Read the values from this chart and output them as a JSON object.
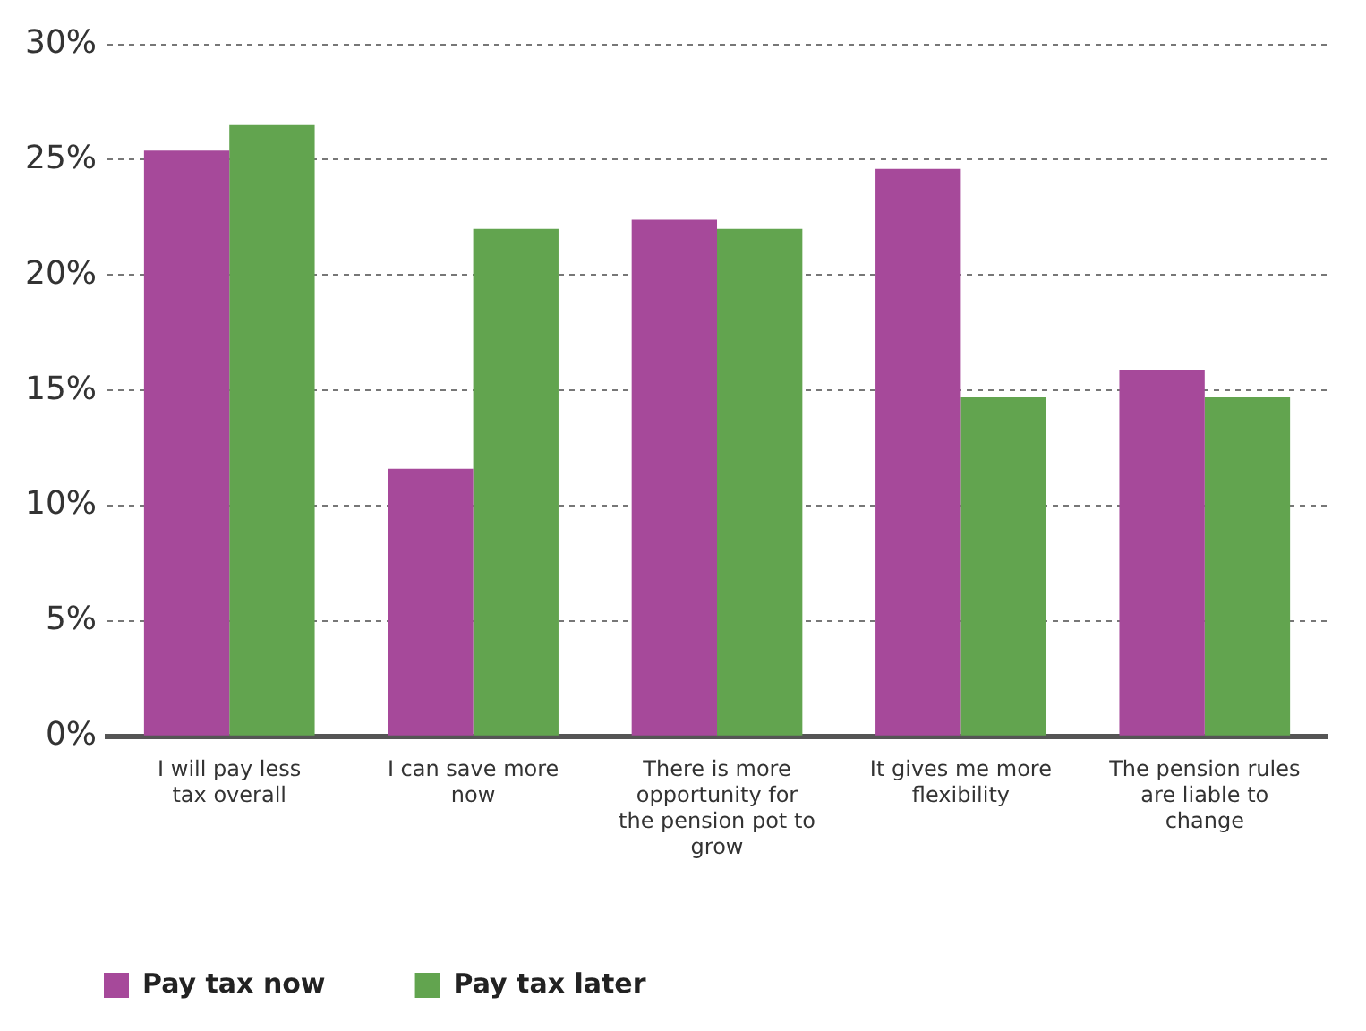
{
  "chart_data": {
    "type": "bar",
    "categories": [
      "I will pay less tax overall",
      "I can save more now",
      "There is more opportunity for the pension pot to grow",
      "It gives me more flexibility",
      "The pension rules are liable to change"
    ],
    "series": [
      {
        "name": "Pay tax now",
        "color": "#a6499a",
        "values": [
          25.4,
          11.6,
          22.4,
          24.6,
          15.9
        ]
      },
      {
        "name": "Pay tax later",
        "color": "#62a44f",
        "values": [
          26.5,
          22.0,
          22.0,
          14.7,
          14.7
        ]
      }
    ],
    "ylim": [
      0,
      30
    ],
    "yticks": [
      {
        "value": 0,
        "label": "0%"
      },
      {
        "value": 5,
        "label": "5%"
      },
      {
        "value": 10,
        "label": "10%"
      },
      {
        "value": 15,
        "label": "15%"
      },
      {
        "value": 20,
        "label": "20%"
      },
      {
        "value": 25,
        "label": "25%"
      },
      {
        "value": 30,
        "label": "30%"
      }
    ],
    "grid": "y",
    "legend": "bottom left"
  }
}
